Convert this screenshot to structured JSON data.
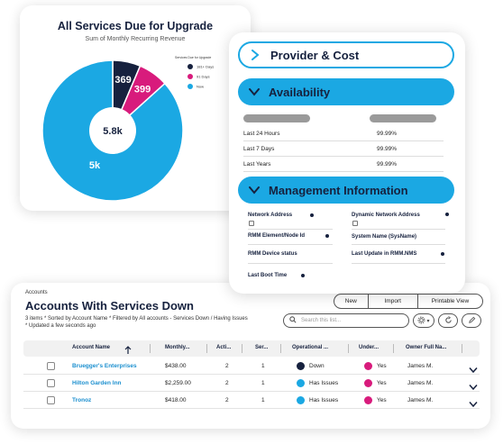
{
  "chart_card": {
    "title": "All Services Due for Upgrade",
    "subtitle": "Sum of Monthly Recurring Revenue",
    "legend_title": "Services Due for Upgrade",
    "center_label": "5.8k"
  },
  "chart_data": {
    "type": "pie",
    "title": "All Services Due for Upgrade",
    "subtitle": "Sum of Monthly Recurring Revenue",
    "categories": [
      "181+ Days",
      "91 Days",
      "Now"
    ],
    "values": [
      369,
      399,
      5000
    ],
    "data_labels": [
      "369",
      "399",
      "5k"
    ],
    "colors": [
      "#16213e",
      "#d81b7c",
      "#1ba8e3"
    ],
    "donut": true,
    "center_label": "5.8k",
    "legend_position": "top-right"
  },
  "detail": {
    "provider_label": "Provider & Cost",
    "availability_label": "Availability",
    "availability_rows": [
      {
        "label": "Last 24 Hours",
        "value": "99.99%"
      },
      {
        "label": "Last 7 Days",
        "value": "99.99%"
      },
      {
        "label": "Last Years",
        "value": "99.99%"
      }
    ],
    "management_label": "Management Information",
    "mgmt_fields": {
      "network_address": "Network Address",
      "dynamic_network_address": "Dynamic Network Address",
      "rmm_element": "RMM Element/Node Id",
      "system_name": "System Name (SysName)",
      "rmm_device_status": "RMM Device status",
      "last_update": "Last Update in RMM.NMS",
      "last_boot_time": "Last Boot Time"
    }
  },
  "accounts": {
    "breadcrumb": "Accounts",
    "title": "Accounts With Services Down",
    "meta": "3 items * Sorted by Account Name * Filtered by All accounts - Services Down / Having Issues * Updated a few seconds ago",
    "buttons": {
      "new": "New",
      "import": "Import",
      "printable_view": "Printable View"
    },
    "search_placeholder": "Search this list...",
    "columns": [
      "Account Name",
      "Monthly...",
      "Acti...",
      "Ser...",
      "Operational ...",
      "Under...",
      "Owner Full Na..."
    ],
    "rows": [
      {
        "name": "Bruegger's Enterprises",
        "monthly": "$438.00",
        "active": "2",
        "services": "1",
        "status": "Down",
        "status_color": "#16213e",
        "under": "Yes",
        "owner": "James M."
      },
      {
        "name": "Hilton Garden Inn",
        "monthly": "$2,259.00",
        "active": "2",
        "services": "1",
        "status": "Has Issues",
        "status_color": "#1ba8e3",
        "under": "Yes",
        "owner": "James M."
      },
      {
        "name": "Tronoz",
        "monthly": "$418.00",
        "active": "2",
        "services": "1",
        "status": "Has Issues",
        "status_color": "#1ba8e3",
        "under": "Yes",
        "owner": "James M."
      }
    ],
    "under_color": "#d81b7c"
  }
}
